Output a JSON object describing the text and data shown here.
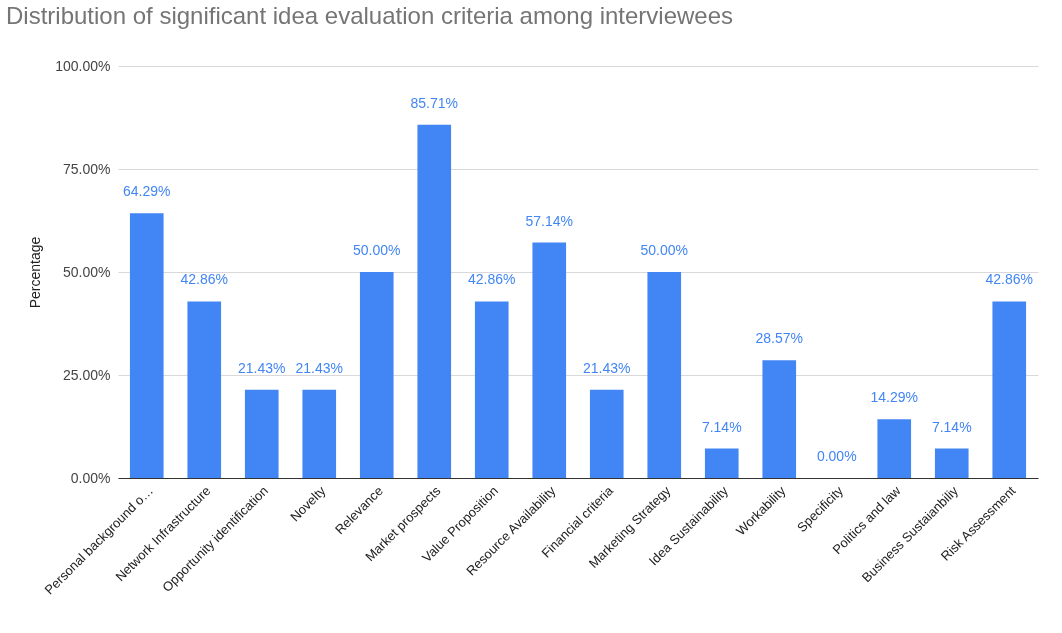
{
  "chart_data": {
    "type": "bar",
    "title": "Distribution of significant idea evaluation criteria among interviewees",
    "ylabel": "Percentage",
    "categories": [
      "Personal background o…",
      "Network Infrastructure",
      "Opportunity identification",
      "Novelty",
      "Relevance",
      "Market prospects",
      "Value Proposition",
      "Resource Availability",
      "Financial criteria",
      "Marketing Strategy",
      "Idea Sustainability",
      "Workability",
      "Specificity",
      "Politics and law",
      "Business Sustaianbiliy",
      "Risk Assessment"
    ],
    "values": [
      64.29,
      42.86,
      21.43,
      21.43,
      50.0,
      85.71,
      42.86,
      57.14,
      21.43,
      50.0,
      7.14,
      28.57,
      0.0,
      14.29,
      7.14,
      42.86
    ],
    "value_labels": [
      "64.29%",
      "42.86%",
      "21.43%",
      "21.43%",
      "50.00%",
      "85.71%",
      "42.86%",
      "57.14%",
      "21.43%",
      "50.00%",
      "7.14%",
      "28.57%",
      "0.00%",
      "14.29%",
      "7.14%",
      "42.86%"
    ],
    "color": "#4285f4",
    "ylim": [
      0,
      100
    ],
    "yticks": [
      {
        "value": 0,
        "label": "0.00%"
      },
      {
        "value": 25,
        "label": "25.00%"
      },
      {
        "value": 50,
        "label": "50.00%"
      },
      {
        "value": 75,
        "label": "75.00%"
      },
      {
        "value": 100,
        "label": "100.00%"
      }
    ],
    "grid": true
  }
}
